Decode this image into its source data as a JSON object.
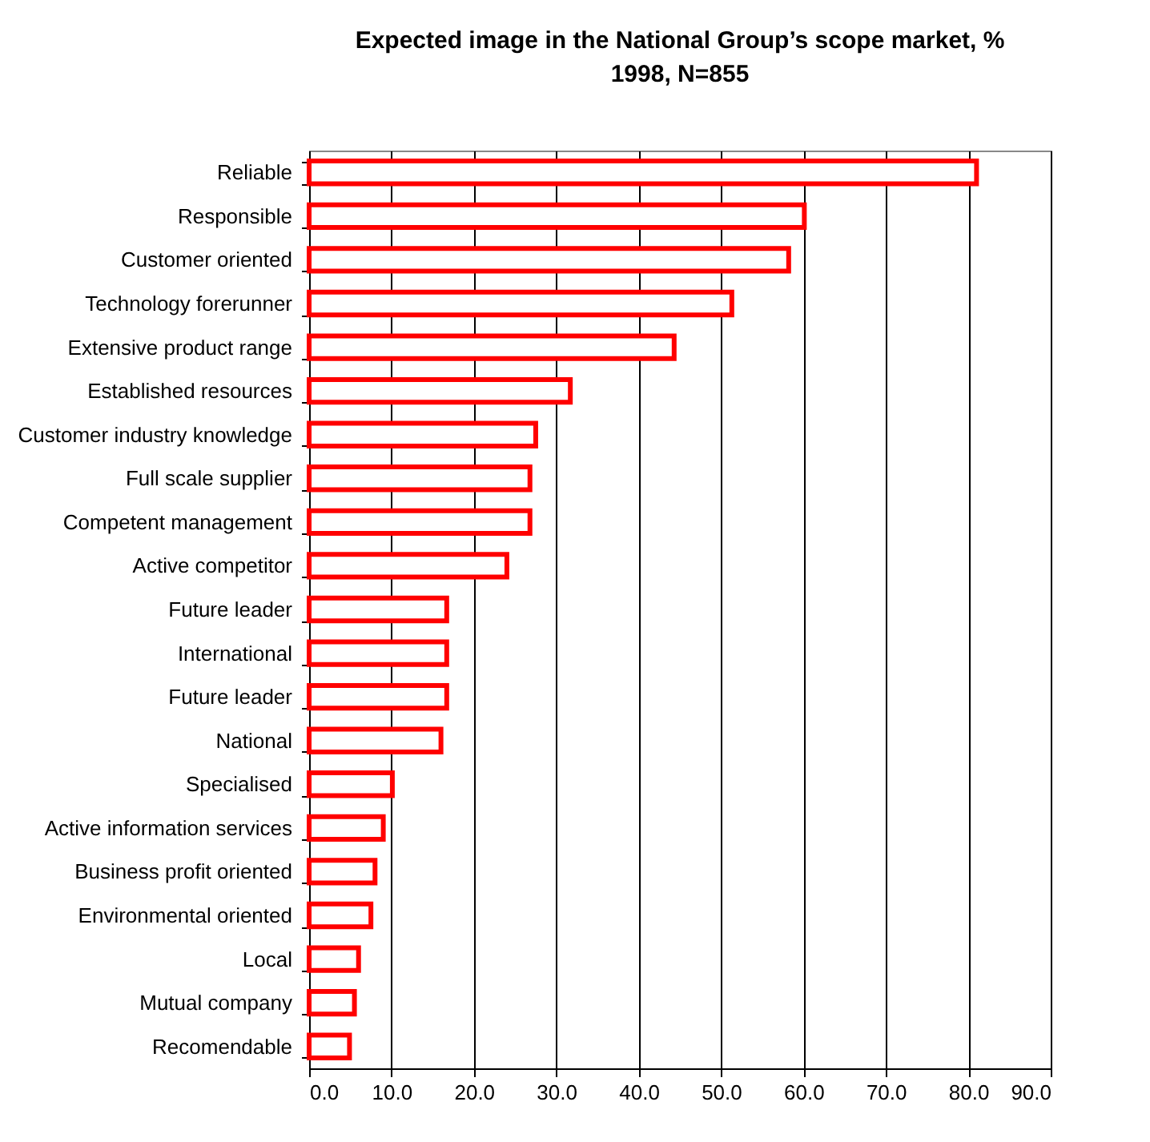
{
  "chart_data": {
    "type": "bar",
    "orientation": "horizontal",
    "title": "Expected image in the National Group’s  scope market, %",
    "subtitle": "1998, N=855",
    "categories": [
      "Reliable",
      "Responsible",
      "Customer oriented",
      "Technology forerunner",
      "Extensive product range",
      "Established resources",
      "Customer industry knowledge",
      "Full scale supplier",
      "Competent management",
      "Active competitor",
      "Future leader",
      "International",
      "Future leader",
      "National",
      "Specialised",
      "Active information services",
      "Business profit oriented",
      "Environmental oriented",
      "Local",
      "Mutual company",
      "Recomendable"
    ],
    "values": [
      81,
      60.1,
      58.2,
      51.3,
      44.3,
      31.7,
      27.5,
      26.8,
      26.8,
      24,
      16.7,
      16.7,
      16.7,
      16,
      10.1,
      9,
      8,
      7.5,
      6,
      5.5,
      4.9
    ],
    "color": "#ff0000",
    "xlim": [
      0,
      90
    ],
    "xticks": [
      {
        "value": 0,
        "label": "0.0"
      },
      {
        "value": 10,
        "label": "10.0"
      },
      {
        "value": 20,
        "label": "20.0"
      },
      {
        "value": 30,
        "label": "30.0"
      },
      {
        "value": 40,
        "label": "40.0"
      },
      {
        "value": 50,
        "label": "50.0"
      },
      {
        "value": 60,
        "label": "60.0"
      },
      {
        "value": 70,
        "label": "70.0"
      },
      {
        "value": 80,
        "label": "80.0"
      },
      {
        "value": 90,
        "label": "90.0"
      }
    ],
    "grid": "x"
  }
}
